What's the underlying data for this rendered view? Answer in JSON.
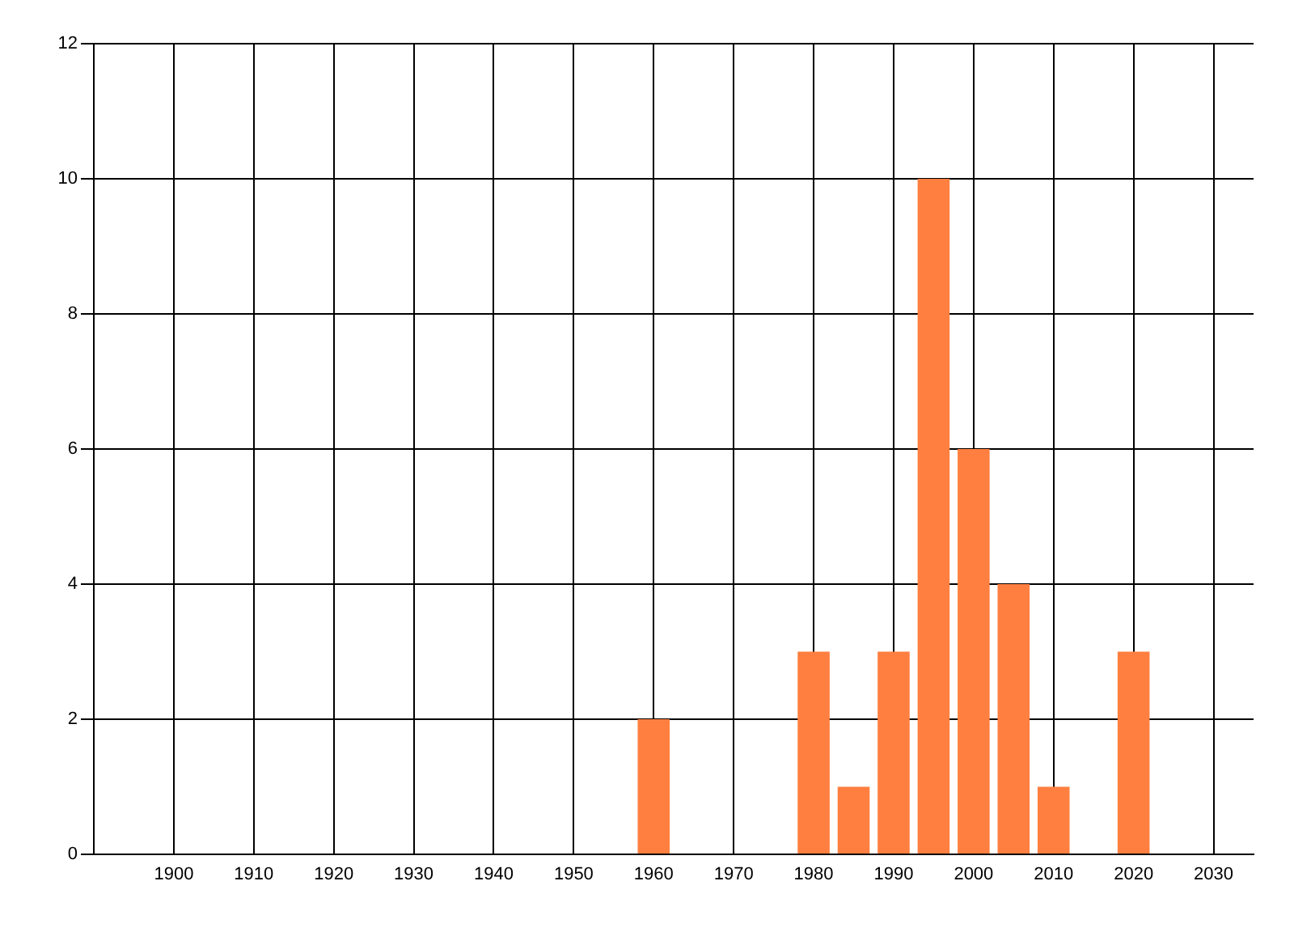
{
  "chart_data": {
    "type": "bar",
    "x": [
      1960,
      1980,
      1985,
      1990,
      1995,
      2000,
      2005,
      2010,
      2020
    ],
    "values": [
      2,
      3,
      1,
      3,
      10,
      6,
      4,
      1,
      3
    ],
    "color": "#ff7f40",
    "xlim": [
      1890,
      2035
    ],
    "xticks": [
      1900,
      1910,
      1920,
      1930,
      1940,
      1950,
      1960,
      1970,
      1980,
      1990,
      2000,
      2010,
      2020,
      2030
    ],
    "ylim": [
      0,
      12
    ],
    "yticks": [
      0,
      2,
      4,
      6,
      8,
      10,
      12
    ],
    "grid": true
  }
}
